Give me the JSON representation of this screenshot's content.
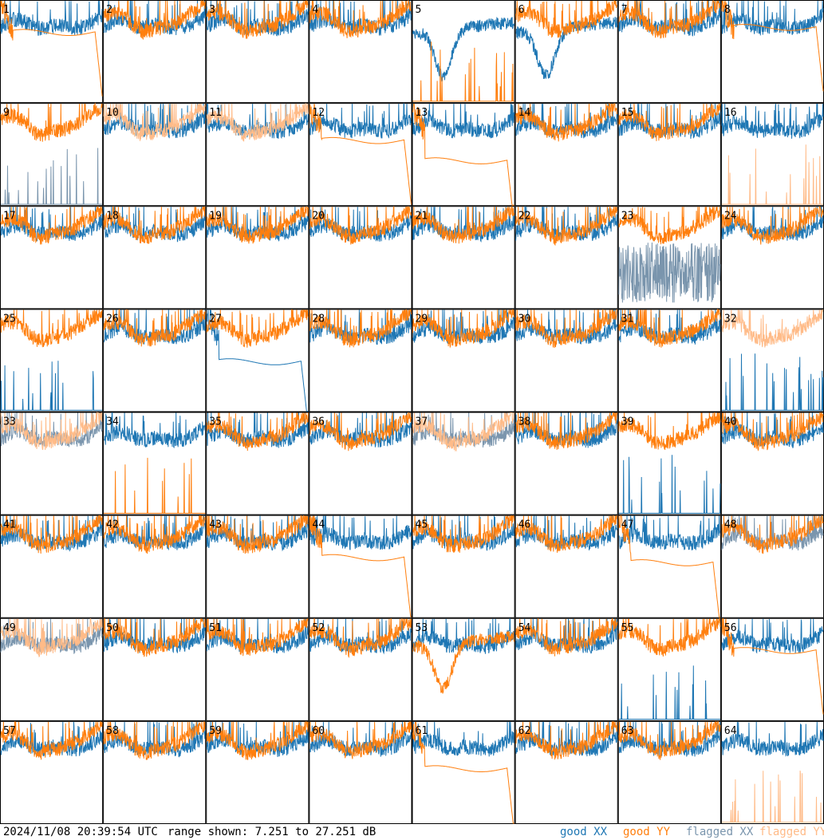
{
  "footer": {
    "timestamp": "2024/11/08 20:39:54 UTC",
    "range_text": "range shown: 7.251 to 27.251 dB"
  },
  "chart_data": {
    "type": "line",
    "title": "",
    "grid": {
      "rows": 8,
      "cols": 8
    },
    "ylim": [
      7.251,
      27.251
    ],
    "y_units": "dB",
    "legend": [
      {
        "label": "good XX",
        "color": "#1f77b4"
      },
      {
        "label": "good YY",
        "color": "#ff7f0e"
      },
      {
        "label": "flagged XX",
        "color": "#7a95ad"
      },
      {
        "label": "flagged YY",
        "color": "#ffbb88"
      }
    ],
    "panel_labels": [
      "1",
      "2",
      "3",
      "4",
      "5",
      "6",
      "7",
      "8",
      "9",
      "10",
      "11",
      "12",
      "13",
      "14",
      "15",
      "16",
      "17",
      "18",
      "19",
      "20",
      "21",
      "22",
      "23",
      "24",
      "25",
      "26",
      "27",
      "28",
      "29",
      "30",
      "31",
      "32",
      "33",
      "34",
      "35",
      "36",
      "37",
      "38",
      "39",
      "40",
      "41",
      "42",
      "43",
      "44",
      "45",
      "46",
      "47",
      "48",
      "49",
      "50",
      "51",
      "52",
      "53",
      "54",
      "55",
      "56",
      "57",
      "58",
      "59",
      "60",
      "61",
      "62",
      "63",
      "64"
    ],
    "panels": {
      "1": {
        "xx": "good",
        "yy": "good",
        "yy_mode": "flat",
        "yy_level": 21
      },
      "5": {
        "xx": "good",
        "yy": "good",
        "yy_mode": "spikes",
        "xx_mode": "dip"
      },
      "6": {
        "xx": "good",
        "yy": "good",
        "xx_mode": "dip"
      },
      "8": {
        "xx": "good",
        "yy": "good",
        "yy_mode": "flat",
        "yy_level": 22
      },
      "9": {
        "xx": "flagged",
        "yy": "good",
        "xx_mode": "spikes"
      },
      "10": {
        "xx": "good",
        "yy": "flagged"
      },
      "11": {
        "xx": "good",
        "yy": "flagged"
      },
      "12": {
        "xx": "good",
        "yy": "good",
        "yy_mode": "flat",
        "yy_level": 20
      },
      "13": {
        "xx": "good",
        "yy": "good",
        "yy_mode": "flat",
        "yy_level": 16
      },
      "16": {
        "xx": "good",
        "yy": "flagged",
        "yy_mode": "spikes"
      },
      "23": {
        "xx": "flagged",
        "yy": "good",
        "xx_mode": "noisy"
      },
      "25": {
        "xx": "good",
        "yy": "good",
        "xx_mode": "spikes"
      },
      "27": {
        "xx": "good",
        "yy": "good",
        "xx_mode": "flat",
        "xx_level": 17
      },
      "31": {
        "xx": "good",
        "yy": "good"
      },
      "32": {
        "xx": "good",
        "yy": "flagged",
        "xx_mode": "spikes"
      },
      "33": {
        "xx": "flagged",
        "yy": "flagged"
      },
      "34": {
        "xx": "good",
        "yy": "good",
        "yy_mode": "spikes"
      },
      "37": {
        "xx": "flagged",
        "yy": "flagged"
      },
      "39": {
        "xx": "good",
        "yy": "good",
        "xx_mode": "spikes"
      },
      "44": {
        "xx": "good",
        "yy": "good",
        "yy_mode": "flat",
        "yy_level": 19
      },
      "47": {
        "xx": "good",
        "yy": "good",
        "yy_mode": "flat",
        "yy_level": 18
      },
      "48": {
        "xx": "flagged",
        "yy": "good"
      },
      "49": {
        "xx": "flagged",
        "yy": "flagged"
      },
      "53": {
        "xx": "good",
        "yy": "good",
        "yy_mode": "dip"
      },
      "55": {
        "xx": "good",
        "yy": "good",
        "xx_mode": "spikes"
      },
      "56": {
        "xx": "good",
        "yy": "good",
        "yy_mode": "flat",
        "yy_level": 21
      },
      "61": {
        "xx": "good",
        "yy": "good",
        "yy_mode": "flat",
        "yy_level": 18
      },
      "64": {
        "xx": "good",
        "yy": "flagged",
        "yy_mode": "spikes"
      }
    }
  }
}
